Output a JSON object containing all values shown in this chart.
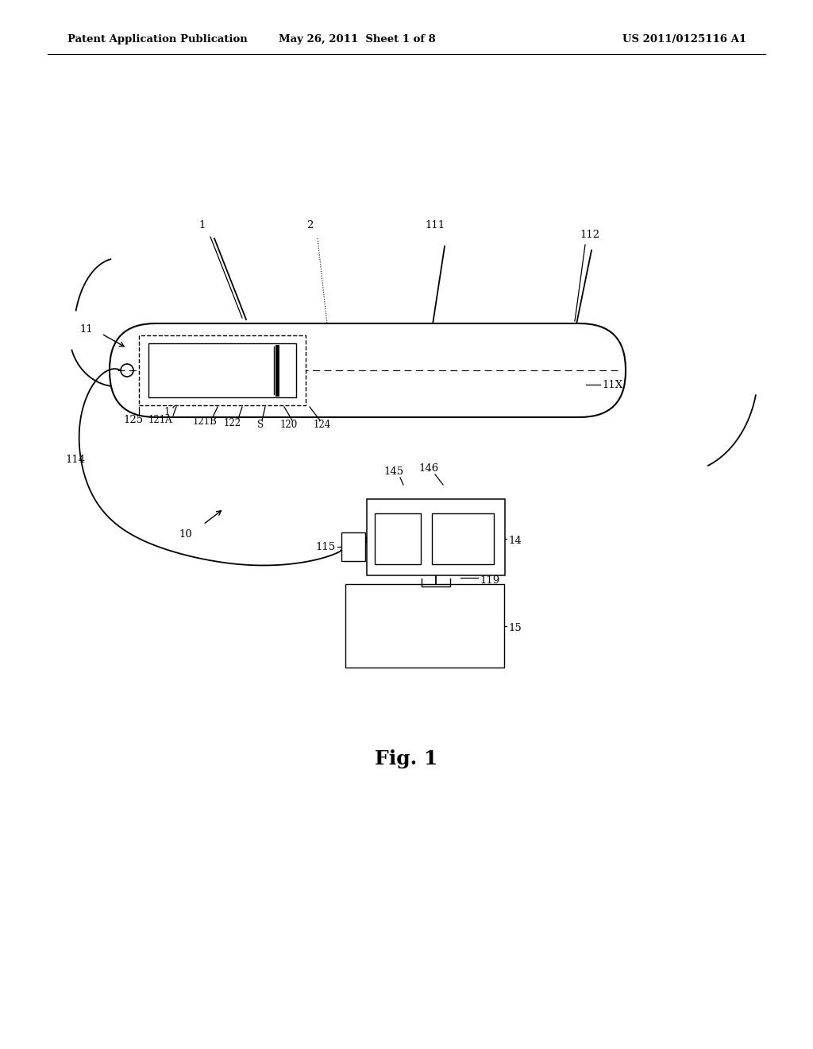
{
  "bg_color": "#ffffff",
  "line_color": "#000000",
  "header_left": "Patent Application Publication",
  "header_mid": "May 26, 2011  Sheet 1 of 8",
  "header_right": "US 2011/0125116 A1",
  "fig_label": "Fig. 1"
}
